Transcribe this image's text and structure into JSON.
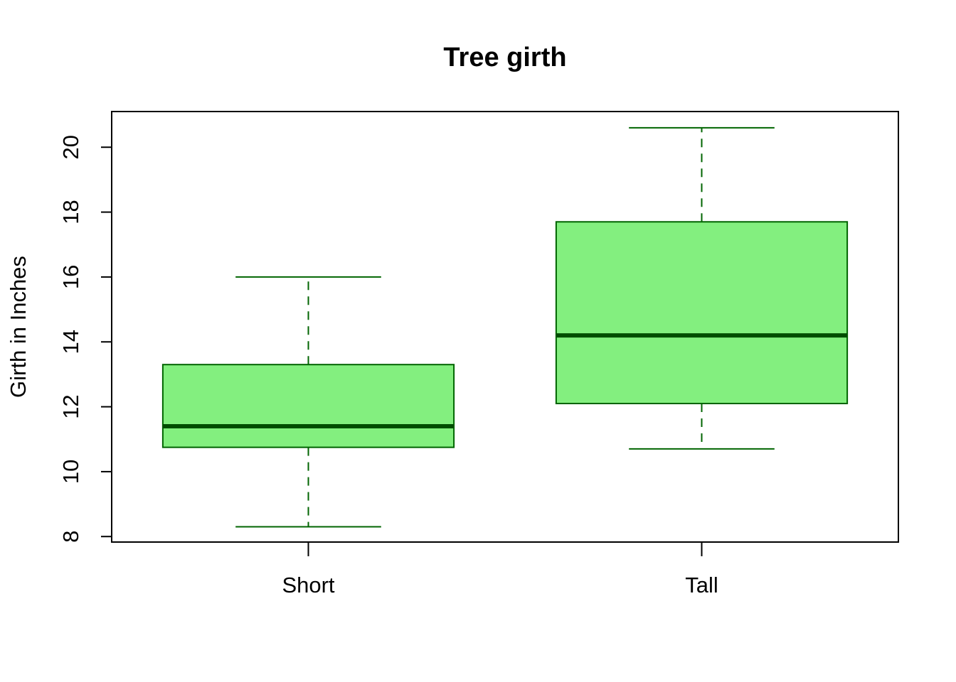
{
  "chart_data": {
    "type": "boxplot",
    "title": "Tree girth",
    "xlabel": "",
    "ylabel": "Girth in Inches",
    "categories": [
      "Short",
      "Tall"
    ],
    "boxes": [
      {
        "category": "Short",
        "min": 8.3,
        "q1": 10.75,
        "median": 11.4,
        "q3": 13.3,
        "max": 16.0
      },
      {
        "category": "Tall",
        "min": 10.7,
        "q1": 12.1,
        "median": 14.2,
        "q3": 17.7,
        "max": 20.6
      }
    ],
    "yticks": [
      8,
      10,
      12,
      14,
      16,
      18,
      20
    ],
    "ylim": [
      7.83,
      21.1
    ],
    "grid": false,
    "legend": "none",
    "colors": {
      "box_fill": "#83ef7f",
      "box_border": "#006400",
      "median": "#004d00",
      "whisker": "#006400",
      "axis": "#000000"
    }
  }
}
